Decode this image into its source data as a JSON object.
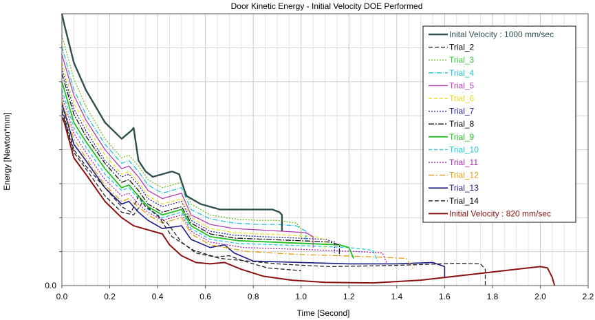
{
  "chart_data": {
    "type": "line",
    "title": "Door Kinetic Energy - Initial Velocity DOE Performed",
    "xlabel": "Time [Second]",
    "ylabel": "Energy [Newton*mm]",
    "xlim": [
      0,
      2.2
    ],
    "ylim": [
      0,
      1.0
    ],
    "x_ticks": [
      "0.0",
      "0.2",
      "0.4",
      "0.6",
      "0.8",
      "1.0",
      "1.2",
      "1.4",
      "1.6",
      "1.8",
      "2.0",
      "2.2"
    ],
    "y_tick_label": "0.0",
    "grid": true,
    "legend_position": "top-right",
    "series": [
      {
        "name": "Inital Velocity : 1000 mm/sec",
        "color": "#2f4f4f",
        "dash": "solid",
        "width": 2.4,
        "text_color": "#2f4f4f",
        "x": [
          0.0,
          0.01,
          0.05,
          0.1,
          0.18,
          0.25,
          0.29,
          0.3,
          0.32,
          0.35,
          0.38,
          0.42,
          0.46,
          0.49,
          0.52,
          0.58,
          0.66,
          0.74,
          0.82,
          0.88,
          0.91,
          0.92,
          0.92
        ],
        "y": [
          1.0,
          0.96,
          0.82,
          0.72,
          0.6,
          0.54,
          0.57,
          0.58,
          0.46,
          0.42,
          0.4,
          0.41,
          0.42,
          0.41,
          0.33,
          0.3,
          0.28,
          0.28,
          0.28,
          0.28,
          0.27,
          0.26,
          0.2
        ]
      },
      {
        "name": "Trial_2",
        "color": "#222222",
        "dash": "6,3",
        "width": 1.3,
        "text_color": "#000000",
        "x": [
          0.0,
          0.05,
          0.1,
          0.18,
          0.25,
          0.29,
          0.32,
          0.35,
          0.4,
          0.43,
          0.46,
          0.55,
          0.66,
          0.78,
          0.9,
          1.0,
          1.12,
          1.25,
          1.38,
          1.52,
          1.65,
          1.75,
          1.77,
          1.77
        ],
        "y": [
          0.65,
          0.5,
          0.44,
          0.36,
          0.29,
          0.27,
          0.33,
          0.29,
          0.26,
          0.22,
          0.18,
          0.13,
          0.1,
          0.09,
          0.08,
          0.075,
          0.07,
          0.072,
          0.074,
          0.078,
          0.082,
          0.08,
          0.06,
          0.0
        ]
      },
      {
        "name": "Trial_3",
        "color": "#6ec21c",
        "dash": "2,2",
        "width": 1.3,
        "text_color": "#3cc83c",
        "x": [
          0.0,
          0.05,
          0.1,
          0.18,
          0.25,
          0.28,
          0.32,
          0.36,
          0.42,
          0.5,
          0.54,
          0.62,
          0.72,
          0.82,
          0.9,
          0.98,
          1.0,
          1.0
        ],
        "y": [
          0.92,
          0.76,
          0.66,
          0.54,
          0.47,
          0.48,
          0.44,
          0.39,
          0.36,
          0.38,
          0.3,
          0.26,
          0.245,
          0.24,
          0.24,
          0.23,
          0.21,
          0.17
        ]
      },
      {
        "name": "Trial_4",
        "color": "#20c0d8",
        "dash": "7,2,1,2",
        "width": 1.3,
        "text_color": "#20c0d8",
        "x": [
          0.0,
          0.05,
          0.1,
          0.18,
          0.25,
          0.28,
          0.32,
          0.36,
          0.42,
          0.5,
          0.54,
          0.62,
          0.72,
          0.82,
          0.9,
          0.98,
          1.02,
          1.02
        ],
        "y": [
          0.88,
          0.72,
          0.63,
          0.52,
          0.45,
          0.46,
          0.42,
          0.37,
          0.34,
          0.36,
          0.28,
          0.245,
          0.23,
          0.225,
          0.225,
          0.22,
          0.2,
          0.16
        ]
      },
      {
        "name": "Trial_5",
        "color": "#b03ab0",
        "dash": "solid",
        "width": 1.3,
        "text_color": "#c03cc0",
        "x": [
          0.0,
          0.05,
          0.1,
          0.18,
          0.25,
          0.28,
          0.32,
          0.36,
          0.42,
          0.5,
          0.54,
          0.62,
          0.72,
          0.82,
          0.92,
          1.02,
          1.05,
          1.05
        ],
        "y": [
          0.85,
          0.7,
          0.61,
          0.5,
          0.43,
          0.44,
          0.4,
          0.35,
          0.32,
          0.34,
          0.26,
          0.225,
          0.21,
          0.205,
          0.2,
          0.195,
          0.18,
          0.14
        ]
      },
      {
        "name": "Trial_6",
        "color": "#e8e020",
        "dash": "5,3",
        "width": 1.3,
        "text_color": "#e0d820",
        "x": [
          0.0,
          0.05,
          0.1,
          0.18,
          0.25,
          0.28,
          0.32,
          0.36,
          0.42,
          0.5,
          0.54,
          0.62,
          0.72,
          0.84,
          0.96,
          1.06,
          1.1,
          1.1
        ],
        "y": [
          0.82,
          0.67,
          0.59,
          0.48,
          0.41,
          0.42,
          0.38,
          0.33,
          0.3,
          0.32,
          0.25,
          0.21,
          0.195,
          0.19,
          0.185,
          0.18,
          0.17,
          0.13
        ]
      },
      {
        "name": "Trial_7",
        "color": "#2020a0",
        "dash": "2,2",
        "width": 1.3,
        "text_color": "#2020a0",
        "x": [
          0.0,
          0.05,
          0.1,
          0.18,
          0.25,
          0.28,
          0.32,
          0.36,
          0.42,
          0.5,
          0.54,
          0.62,
          0.72,
          0.84,
          0.98,
          1.1,
          1.14,
          1.14
        ],
        "y": [
          0.8,
          0.65,
          0.57,
          0.46,
          0.4,
          0.41,
          0.37,
          0.32,
          0.29,
          0.31,
          0.24,
          0.2,
          0.185,
          0.18,
          0.175,
          0.17,
          0.16,
          0.12
        ]
      },
      {
        "name": "Trial_8",
        "color": "#111111",
        "dash": "8,2,2,2",
        "width": 1.3,
        "text_color": "#000000",
        "x": [
          0.0,
          0.05,
          0.1,
          0.18,
          0.25,
          0.28,
          0.32,
          0.36,
          0.42,
          0.5,
          0.54,
          0.62,
          0.72,
          0.86,
          1.0,
          1.12,
          1.16,
          1.16
        ],
        "y": [
          0.78,
          0.63,
          0.55,
          0.45,
          0.38,
          0.39,
          0.35,
          0.3,
          0.27,
          0.29,
          0.23,
          0.19,
          0.175,
          0.17,
          0.165,
          0.16,
          0.15,
          0.11
        ]
      },
      {
        "name": "Trial_9",
        "color": "#20c020",
        "dash": "solid",
        "width": 1.8,
        "text_color": "#20c020",
        "x": [
          0.0,
          0.05,
          0.1,
          0.18,
          0.25,
          0.28,
          0.32,
          0.36,
          0.42,
          0.5,
          0.54,
          0.62,
          0.74,
          0.88,
          1.02,
          1.16,
          1.2,
          1.22
        ],
        "y": [
          0.75,
          0.6,
          0.53,
          0.43,
          0.36,
          0.37,
          0.33,
          0.29,
          0.26,
          0.28,
          0.22,
          0.18,
          0.165,
          0.16,
          0.155,
          0.15,
          0.14,
          0.1
        ]
      },
      {
        "name": "Trial_10",
        "color": "#20c8d8",
        "dash": "5,3",
        "width": 1.3,
        "text_color": "#20c8d8",
        "x": [
          0.0,
          0.05,
          0.1,
          0.18,
          0.25,
          0.28,
          0.32,
          0.36,
          0.42,
          0.5,
          0.54,
          0.62,
          0.74,
          0.9,
          1.06,
          1.2,
          1.3,
          1.32
        ],
        "y": [
          0.72,
          0.58,
          0.51,
          0.41,
          0.35,
          0.36,
          0.32,
          0.28,
          0.25,
          0.27,
          0.21,
          0.17,
          0.155,
          0.15,
          0.145,
          0.14,
          0.13,
          0.09
        ]
      },
      {
        "name": "Trial_11",
        "color": "#b020b0",
        "dash": "2,2",
        "width": 1.3,
        "text_color": "#b020b0",
        "x": [
          0.0,
          0.05,
          0.1,
          0.18,
          0.25,
          0.28,
          0.32,
          0.36,
          0.42,
          0.5,
          0.54,
          0.62,
          0.76,
          0.94,
          1.1,
          1.24,
          1.34,
          1.36
        ],
        "y": [
          0.7,
          0.56,
          0.49,
          0.39,
          0.33,
          0.34,
          0.3,
          0.27,
          0.24,
          0.26,
          0.2,
          0.16,
          0.14,
          0.135,
          0.13,
          0.125,
          0.12,
          0.08
        ]
      },
      {
        "name": "Trial_12",
        "color": "#e0a010",
        "dash": "8,3,2,3",
        "width": 1.3,
        "text_color": "#e0a010",
        "x": [
          0.0,
          0.05,
          0.1,
          0.18,
          0.25,
          0.28,
          0.32,
          0.36,
          0.42,
          0.5,
          0.54,
          0.62,
          0.78,
          0.98,
          1.16,
          1.32,
          1.44,
          1.47
        ],
        "y": [
          0.68,
          0.54,
          0.47,
          0.37,
          0.31,
          0.32,
          0.29,
          0.26,
          0.23,
          0.25,
          0.19,
          0.15,
          0.125,
          0.115,
          0.11,
          0.105,
          0.1,
          0.06
        ]
      },
      {
        "name": "Trial_13",
        "color": "#1a1a80",
        "dash": "solid",
        "width": 1.6,
        "text_color": "#1a1a80",
        "x": [
          0.0,
          0.05,
          0.1,
          0.18,
          0.25,
          0.28,
          0.32,
          0.36,
          0.42,
          0.5,
          0.54,
          0.62,
          0.68,
          0.72,
          0.8,
          1.0,
          1.2,
          1.4,
          1.55,
          1.6,
          1.6
        ],
        "y": [
          0.67,
          0.52,
          0.46,
          0.36,
          0.3,
          0.31,
          0.27,
          0.24,
          0.21,
          0.22,
          0.17,
          0.14,
          0.15,
          0.12,
          0.09,
          0.085,
          0.08,
          0.08,
          0.085,
          0.07,
          0.03
        ]
      },
      {
        "name": "Trial_14",
        "color": "#222222",
        "dash": "6,3",
        "width": 1.3,
        "text_color": "#000000",
        "x": [
          0.0,
          0.05,
          0.1,
          0.18,
          0.25,
          0.3,
          0.34,
          0.38,
          0.44,
          0.5,
          0.56,
          0.64,
          0.7,
          0.76,
          0.86,
          1.0
        ],
        "y": [
          0.64,
          0.49,
          0.43,
          0.33,
          0.27,
          0.26,
          0.31,
          0.27,
          0.23,
          0.16,
          0.12,
          0.105,
          0.11,
          0.09,
          0.065,
          0.055
        ]
      },
      {
        "name": "Initial Velocity : 820 mm/sec",
        "color": "#8b1010",
        "dash": "solid",
        "width": 2.0,
        "text_color": "#8b1010",
        "x": [
          0.0,
          0.01,
          0.05,
          0.1,
          0.18,
          0.25,
          0.3,
          0.34,
          0.38,
          0.42,
          0.45,
          0.5,
          0.56,
          0.62,
          0.68,
          0.75,
          0.84,
          0.96,
          1.1,
          1.3,
          1.5,
          1.7,
          1.9,
          2.0,
          2.03,
          2.05,
          2.06
        ],
        "y": [
          0.62,
          0.6,
          0.47,
          0.41,
          0.31,
          0.25,
          0.22,
          0.21,
          0.2,
          0.19,
          0.15,
          0.11,
          0.085,
          0.08,
          0.085,
          0.06,
          0.035,
          0.02,
          0.012,
          0.01,
          0.02,
          0.04,
          0.06,
          0.07,
          0.065,
          0.03,
          0.0
        ]
      }
    ]
  }
}
